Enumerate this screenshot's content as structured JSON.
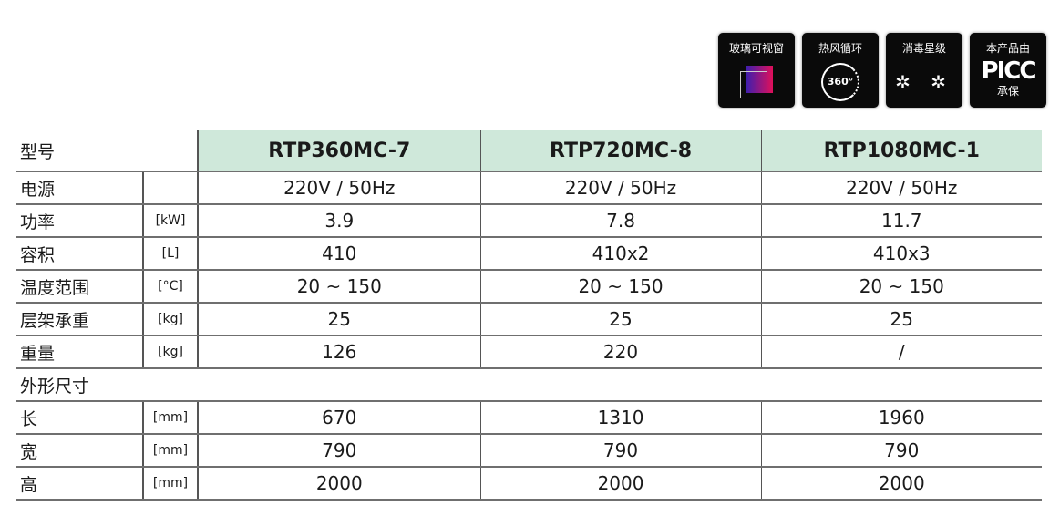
{
  "badges": [
    {
      "top": "玻璃可视窗",
      "icon": "glass-window-icon"
    },
    {
      "top": "热风循环",
      "icon": "360-circulation-icon",
      "icon_text": "360°"
    },
    {
      "top": "消毒星级",
      "icon": "disinfection-stars-icon",
      "icon_text": "✲ ✲"
    },
    {
      "top": "本产品由",
      "icon": "picc-logo",
      "icon_text": "PICC",
      "bottom": "承保"
    }
  ],
  "table": {
    "header": {
      "label": "型号",
      "models": [
        "RTP360MC-7",
        "RTP720MC-8",
        "RTP1080MC-1"
      ]
    },
    "rows": [
      {
        "label": "电源",
        "unit": "",
        "values": [
          "220V / 50Hz",
          "220V / 50Hz",
          "220V / 50Hz"
        ]
      },
      {
        "label": "功率",
        "unit": "[kW]",
        "values": [
          "3.9",
          "7.8",
          "11.7"
        ]
      },
      {
        "label": "容积",
        "unit": "[L]",
        "values": [
          "410",
          "410x2",
          "410x3"
        ]
      },
      {
        "label": "温度范围",
        "unit": "[°C]",
        "values": [
          "20 ~ 150",
          "20 ~ 150",
          "20 ~ 150"
        ]
      },
      {
        "label": "层架承重",
        "unit": "[kg]",
        "values": [
          "25",
          "25",
          "25"
        ]
      },
      {
        "label": "重量",
        "unit": "[kg]",
        "values": [
          "126",
          "220",
          "/"
        ]
      }
    ],
    "group_label": "外形尺寸",
    "dim_rows": [
      {
        "label": "长",
        "unit": "[mm]",
        "values": [
          "670",
          "1310",
          "1960"
        ]
      },
      {
        "label": "宽",
        "unit": "[mm]",
        "values": [
          "790",
          "790",
          "790"
        ]
      },
      {
        "label": "高",
        "unit": "[mm]",
        "values": [
          "2000",
          "2000",
          "2000"
        ]
      }
    ]
  },
  "colors": {
    "header_bg": "#cfe8da",
    "badge_bg": "#0a0a0a"
  }
}
